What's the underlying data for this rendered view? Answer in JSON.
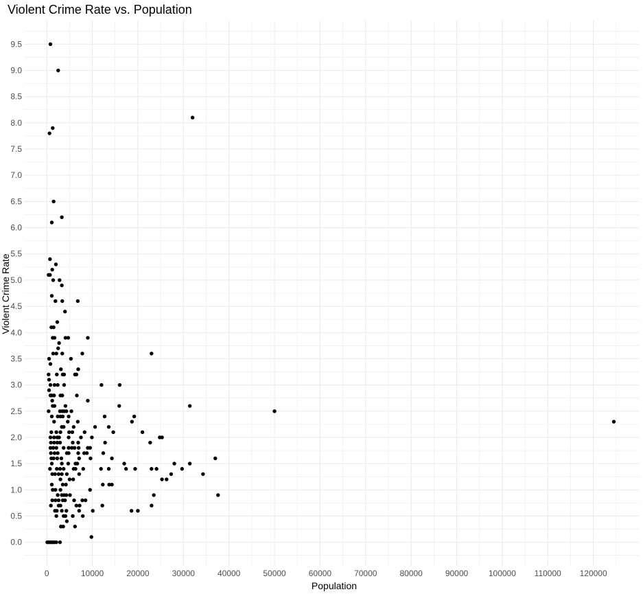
{
  "chart_data": {
    "type": "scatter",
    "title": "Violent Crime Rate vs. Population",
    "xlabel": "Population",
    "ylabel": "Violent Crime Rate",
    "xlim": [
      -5000,
      130000
    ],
    "ylim": [
      -0.45,
      9.95
    ],
    "x_ticks": [
      0,
      10000,
      20000,
      30000,
      40000,
      50000,
      60000,
      70000,
      80000,
      90000,
      100000,
      110000,
      120000
    ],
    "x_tick_labels": [
      "0",
      "10000",
      "20000",
      "30000",
      "40000",
      "50000",
      "60000",
      "70000",
      "80000",
      "90000",
      "100000",
      "110000",
      "120000"
    ],
    "y_ticks": [
      0,
      0.5,
      1,
      1.5,
      2,
      2.5,
      3,
      3.5,
      4,
      4.5,
      5,
      5.5,
      6,
      6.5,
      7,
      7.5,
      8,
      8.5,
      9,
      9.5
    ],
    "y_tick_labels": [
      "0.0",
      "0.5",
      "1.0",
      "1.5",
      "2.0",
      "2.5",
      "3.0",
      "3.5",
      "4.0",
      "4.5",
      "5.0",
      "5.5",
      "6.0",
      "6.5",
      "7.0",
      "7.5",
      "8.0",
      "8.5",
      "9.0",
      "9.5"
    ],
    "grid": true,
    "legend": "none",
    "colors": {
      "point": "#000000",
      "grid": "#ebebeb",
      "tick_text": "#4d4d4d",
      "title": "#000000"
    },
    "points": [
      [
        800,
        9.5
      ],
      [
        2500,
        9.0
      ],
      [
        32000,
        8.1
      ],
      [
        1300,
        7.9
      ],
      [
        600,
        7.8
      ],
      [
        1500,
        6.5
      ],
      [
        3300,
        6.2
      ],
      [
        1100,
        6.1
      ],
      [
        700,
        5.4
      ],
      [
        2000,
        5.3
      ],
      [
        1200,
        5.2
      ],
      [
        400,
        5.1
      ],
      [
        700,
        5.1
      ],
      [
        1400,
        5.0
      ],
      [
        2800,
        5.0
      ],
      [
        3300,
        4.9
      ],
      [
        1100,
        4.7
      ],
      [
        1900,
        4.6
      ],
      [
        3400,
        4.6
      ],
      [
        6800,
        4.6
      ],
      [
        4000,
        4.4
      ],
      [
        2300,
        4.2
      ],
      [
        1000,
        4.1
      ],
      [
        1500,
        4.1
      ],
      [
        1300,
        3.9
      ],
      [
        1700,
        3.9
      ],
      [
        4100,
        3.9
      ],
      [
        4700,
        3.9
      ],
      [
        9000,
        3.9
      ],
      [
        2700,
        3.8
      ],
      [
        2500,
        3.7
      ],
      [
        1400,
        3.6
      ],
      [
        2100,
        3.6
      ],
      [
        3400,
        3.6
      ],
      [
        7800,
        3.6
      ],
      [
        23000,
        3.6
      ],
      [
        500,
        3.5
      ],
      [
        5300,
        3.5
      ],
      [
        800,
        3.4
      ],
      [
        6900,
        3.3
      ],
      [
        3100,
        3.3
      ],
      [
        400,
        3.2
      ],
      [
        2200,
        3.2
      ],
      [
        3500,
        3.2
      ],
      [
        3800,
        3.2
      ],
      [
        6200,
        3.2
      ],
      [
        6500,
        3.2
      ],
      [
        500,
        3.1
      ],
      [
        800,
        3.0
      ],
      [
        1700,
        3.0
      ],
      [
        2400,
        3.0
      ],
      [
        3800,
        3.0
      ],
      [
        12000,
        3.0
      ],
      [
        16000,
        3.0
      ],
      [
        500,
        2.9
      ],
      [
        800,
        2.8
      ],
      [
        1100,
        2.8
      ],
      [
        1600,
        2.8
      ],
      [
        3000,
        2.8
      ],
      [
        3400,
        2.8
      ],
      [
        6600,
        2.8
      ],
      [
        1200,
        2.7
      ],
      [
        9000,
        2.7
      ],
      [
        1300,
        2.6
      ],
      [
        1700,
        2.6
      ],
      [
        4100,
        2.6
      ],
      [
        15900,
        2.6
      ],
      [
        31400,
        2.6
      ],
      [
        400,
        2.5
      ],
      [
        2900,
        2.5
      ],
      [
        3400,
        2.5
      ],
      [
        3800,
        2.5
      ],
      [
        4300,
        2.5
      ],
      [
        5400,
        2.5
      ],
      [
        50000,
        2.5
      ],
      [
        1100,
        2.4
      ],
      [
        2400,
        2.4
      ],
      [
        3000,
        2.4
      ],
      [
        3500,
        2.4
      ],
      [
        4800,
        2.4
      ],
      [
        12700,
        2.4
      ],
      [
        19200,
        2.4
      ],
      [
        1600,
        2.3
      ],
      [
        4600,
        2.3
      ],
      [
        6800,
        2.3
      ],
      [
        18700,
        2.3
      ],
      [
        124500,
        2.3
      ],
      [
        3300,
        2.2
      ],
      [
        3700,
        2.2
      ],
      [
        5900,
        2.2
      ],
      [
        10600,
        2.2
      ],
      [
        13600,
        2.2
      ],
      [
        1000,
        2.1
      ],
      [
        2100,
        2.1
      ],
      [
        3000,
        2.1
      ],
      [
        4900,
        2.1
      ],
      [
        5600,
        2.1
      ],
      [
        8300,
        2.1
      ],
      [
        14600,
        2.1
      ],
      [
        21000,
        2.1
      ],
      [
        800,
        2.0
      ],
      [
        1600,
        2.0
      ],
      [
        2300,
        2.0
      ],
      [
        2700,
        2.0
      ],
      [
        4800,
        2.0
      ],
      [
        7500,
        2.0
      ],
      [
        9900,
        2.0
      ],
      [
        24800,
        2.0
      ],
      [
        25300,
        2.0
      ],
      [
        900,
        1.9
      ],
      [
        1600,
        1.9
      ],
      [
        2300,
        1.9
      ],
      [
        2900,
        1.9
      ],
      [
        5700,
        1.9
      ],
      [
        6900,
        1.9
      ],
      [
        12800,
        1.9
      ],
      [
        22700,
        1.9
      ],
      [
        800,
        1.8
      ],
      [
        1400,
        1.8
      ],
      [
        2100,
        1.8
      ],
      [
        3700,
        1.8
      ],
      [
        4800,
        1.8
      ],
      [
        5500,
        1.8
      ],
      [
        6100,
        1.8
      ],
      [
        7000,
        1.8
      ],
      [
        9000,
        1.8
      ],
      [
        9500,
        1.8
      ],
      [
        900,
        1.7
      ],
      [
        1700,
        1.7
      ],
      [
        2400,
        1.7
      ],
      [
        4400,
        1.7
      ],
      [
        4800,
        1.7
      ],
      [
        6900,
        1.7
      ],
      [
        8200,
        1.7
      ],
      [
        8800,
        1.7
      ],
      [
        12400,
        1.7
      ],
      [
        1000,
        1.6
      ],
      [
        1500,
        1.6
      ],
      [
        2300,
        1.6
      ],
      [
        3200,
        1.6
      ],
      [
        7100,
        1.6
      ],
      [
        9600,
        1.6
      ],
      [
        14300,
        1.6
      ],
      [
        37000,
        1.6
      ],
      [
        1100,
        1.5
      ],
      [
        3300,
        1.5
      ],
      [
        4700,
        1.5
      ],
      [
        6300,
        1.5
      ],
      [
        6700,
        1.5
      ],
      [
        17000,
        1.5
      ],
      [
        28000,
        1.5
      ],
      [
        31400,
        1.5
      ],
      [
        700,
        1.4
      ],
      [
        2200,
        1.4
      ],
      [
        2900,
        1.4
      ],
      [
        3700,
        1.4
      ],
      [
        5900,
        1.4
      ],
      [
        6300,
        1.4
      ],
      [
        8000,
        1.4
      ],
      [
        11900,
        1.4
      ],
      [
        13600,
        1.4
      ],
      [
        17400,
        1.4
      ],
      [
        19400,
        1.4
      ],
      [
        23000,
        1.4
      ],
      [
        24100,
        1.4
      ],
      [
        29700,
        1.4
      ],
      [
        1200,
        1.3
      ],
      [
        1800,
        1.3
      ],
      [
        2600,
        1.3
      ],
      [
        3300,
        1.3
      ],
      [
        4400,
        1.3
      ],
      [
        7100,
        1.3
      ],
      [
        27300,
        1.3
      ],
      [
        34300,
        1.3
      ],
      [
        3000,
        1.2
      ],
      [
        5000,
        1.2
      ],
      [
        5800,
        1.2
      ],
      [
        25300,
        1.2
      ],
      [
        26300,
        1.2
      ],
      [
        1100,
        1.1
      ],
      [
        3500,
        1.1
      ],
      [
        4200,
        1.1
      ],
      [
        12300,
        1.1
      ],
      [
        13700,
        1.1
      ],
      [
        14300,
        1.1
      ],
      [
        1300,
        1.0
      ],
      [
        1900,
        1.0
      ],
      [
        3000,
        1.0
      ],
      [
        9500,
        1.0
      ],
      [
        2400,
        0.9
      ],
      [
        3300,
        0.9
      ],
      [
        3800,
        0.9
      ],
      [
        4300,
        0.9
      ],
      [
        5100,
        0.9
      ],
      [
        23500,
        0.9
      ],
      [
        37600,
        0.9
      ],
      [
        1200,
        0.8
      ],
      [
        1900,
        0.8
      ],
      [
        2600,
        0.8
      ],
      [
        3500,
        0.8
      ],
      [
        4000,
        0.8
      ],
      [
        6000,
        0.8
      ],
      [
        7800,
        0.8
      ],
      [
        8500,
        0.8
      ],
      [
        900,
        0.7
      ],
      [
        2600,
        0.7
      ],
      [
        3000,
        0.7
      ],
      [
        6500,
        0.7
      ],
      [
        7200,
        0.7
      ],
      [
        12200,
        0.7
      ],
      [
        23000,
        0.7
      ],
      [
        1800,
        0.6
      ],
      [
        2200,
        0.6
      ],
      [
        3300,
        0.6
      ],
      [
        4300,
        0.6
      ],
      [
        7100,
        0.6
      ],
      [
        10100,
        0.6
      ],
      [
        18600,
        0.6
      ],
      [
        20000,
        0.6
      ],
      [
        2100,
        0.5
      ],
      [
        3700,
        0.5
      ],
      [
        4100,
        0.5
      ],
      [
        5700,
        0.5
      ],
      [
        7900,
        0.5
      ],
      [
        4400,
        0.4
      ],
      [
        3100,
        0.3
      ],
      [
        3600,
        0.3
      ],
      [
        6200,
        0.3
      ],
      [
        9800,
        0.1
      ],
      [
        100,
        0.0
      ],
      [
        400,
        0.0
      ],
      [
        700,
        0.0
      ],
      [
        1000,
        0.0
      ],
      [
        1300,
        0.0
      ],
      [
        1700,
        0.0
      ],
      [
        2100,
        0.0
      ],
      [
        2900,
        0.0
      ]
    ]
  }
}
